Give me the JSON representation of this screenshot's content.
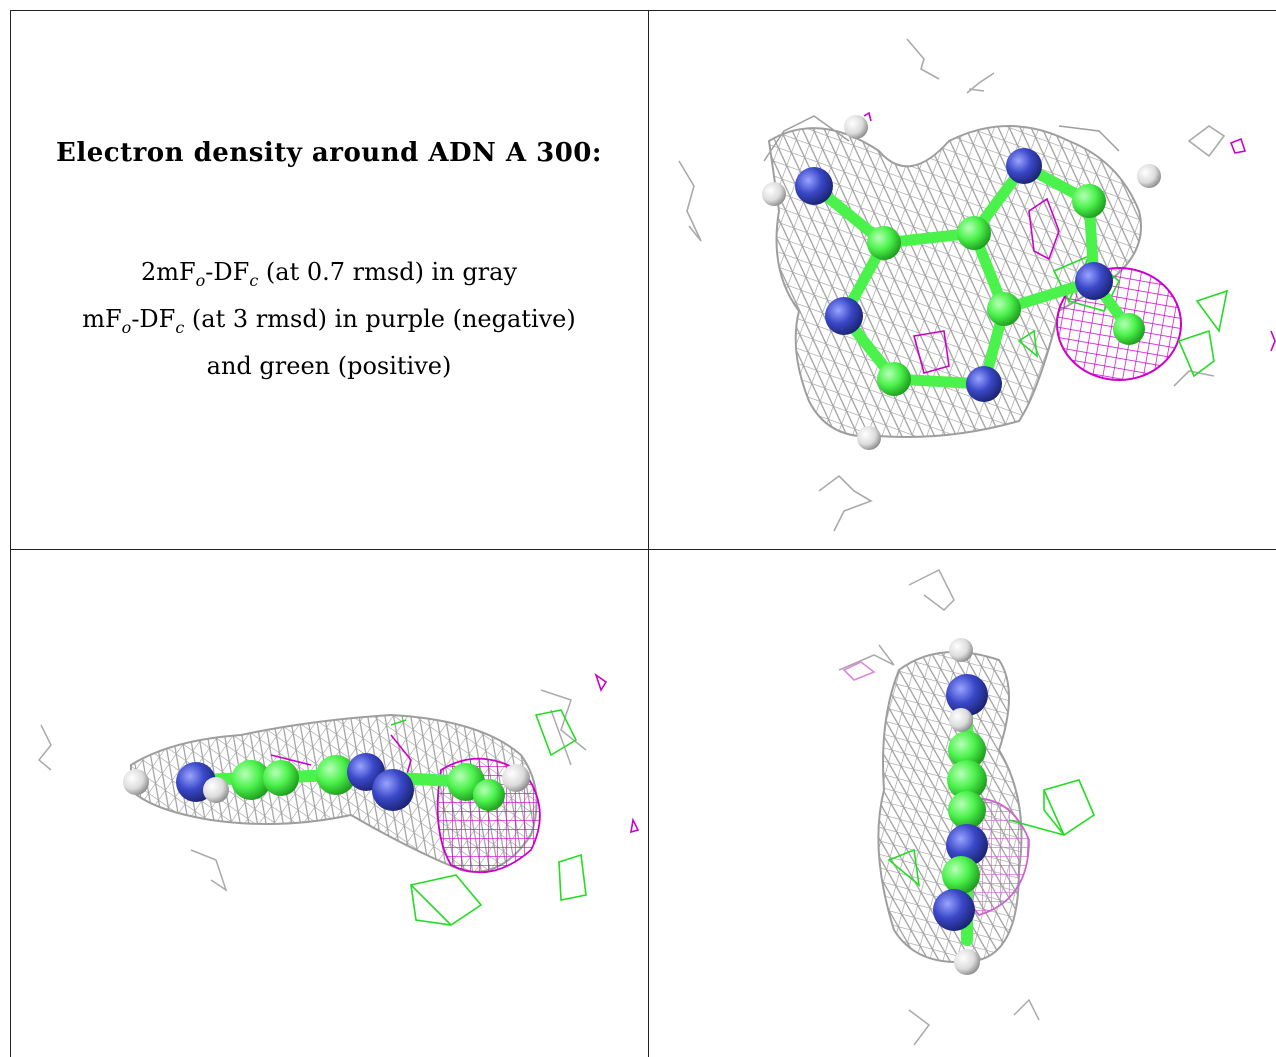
{
  "figure": {
    "title": "Electron density around ADN A 300:",
    "legend_lines": [
      {
        "prefix": "2mF",
        "sub1": "o",
        "mid": "-DF",
        "sub2": "c",
        "suffix": " (at 0.7 rmsd) in gray"
      },
      {
        "prefix": "mF",
        "sub1": "o",
        "mid": "-DF",
        "sub2": "c",
        "suffix": " (at 3 rmsd) in purple (negative)"
      },
      {
        "prefix": "",
        "sub1": "",
        "mid": "",
        "sub2": "",
        "suffix": "and green (positive)"
      }
    ]
  },
  "colors": {
    "map_2fofc": "#9e9e9e",
    "map_negative": "#cc00cc",
    "map_positive": "#22dd22",
    "carbon": "#4cf24c",
    "nitrogen": "#3a48c8",
    "hydrogen": "#e0e0e0"
  },
  "panels": [
    {
      "name": "caption-panel"
    },
    {
      "name": "view-top"
    },
    {
      "name": "view-side"
    },
    {
      "name": "view-end"
    }
  ]
}
